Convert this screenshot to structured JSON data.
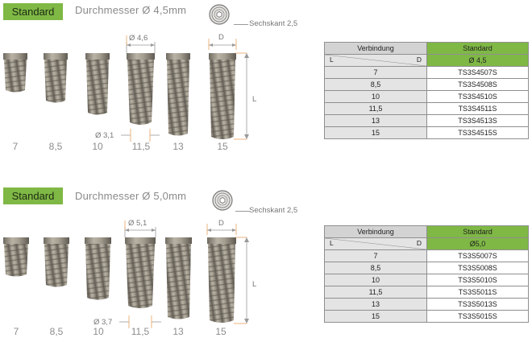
{
  "colors": {
    "accent": "#7fb845",
    "header_grey": "#d3d3d3",
    "row_grey": "#e4e4e4",
    "dim_orange": "#e9a15e"
  },
  "sections": [
    {
      "badge": "Standard",
      "title": "Durchmesser Ø 4,5mm",
      "hex_label": "Sechskant 2,5",
      "d_label": "D",
      "l_label": "L",
      "top_diam_label": "Ø 4,6",
      "bottom_diam_label": "Ø 3,1",
      "lengths": [
        "7",
        "8,5",
        "10",
        "11,5",
        "13",
        "15"
      ],
      "table": {
        "col1_header": "Verbindung",
        "col2_header": "Standard",
        "corner_l": "L",
        "corner_d": "D",
        "diameter": "Ø 4,5",
        "rows": [
          {
            "length": "7",
            "code": "TS3S4507S"
          },
          {
            "length": "8,5",
            "code": "TS3S4508S"
          },
          {
            "length": "10",
            "code": "TS3S4510S"
          },
          {
            "length": "11,5",
            "code": "TS3S4511S"
          },
          {
            "length": "13",
            "code": "TS3S4513S"
          },
          {
            "length": "15",
            "code": "TS3S4515S"
          }
        ]
      }
    },
    {
      "badge": "Standard",
      "title": "Durchmesser Ø 5,0mm",
      "hex_label": "Sechskant 2,5",
      "d_label": "D",
      "l_label": "L",
      "top_diam_label": "Ø 5,1",
      "bottom_diam_label": "Ø 3,7",
      "lengths": [
        "7",
        "8,5",
        "10",
        "11,5",
        "13",
        "15"
      ],
      "table": {
        "col1_header": "Verbindung",
        "col2_header": "Standard",
        "corner_l": "L",
        "corner_d": "D",
        "diameter": "Ø5,0",
        "rows": [
          {
            "length": "7",
            "code": "TS3S5007S"
          },
          {
            "length": "8,5",
            "code": "TS3S5008S"
          },
          {
            "length": "10",
            "code": "TS3S5010S"
          },
          {
            "length": "11,5",
            "code": "TS3S5011S"
          },
          {
            "length": "13",
            "code": "TS3S5013S"
          },
          {
            "length": "15",
            "code": "TS3S5015S"
          }
        ]
      }
    }
  ]
}
